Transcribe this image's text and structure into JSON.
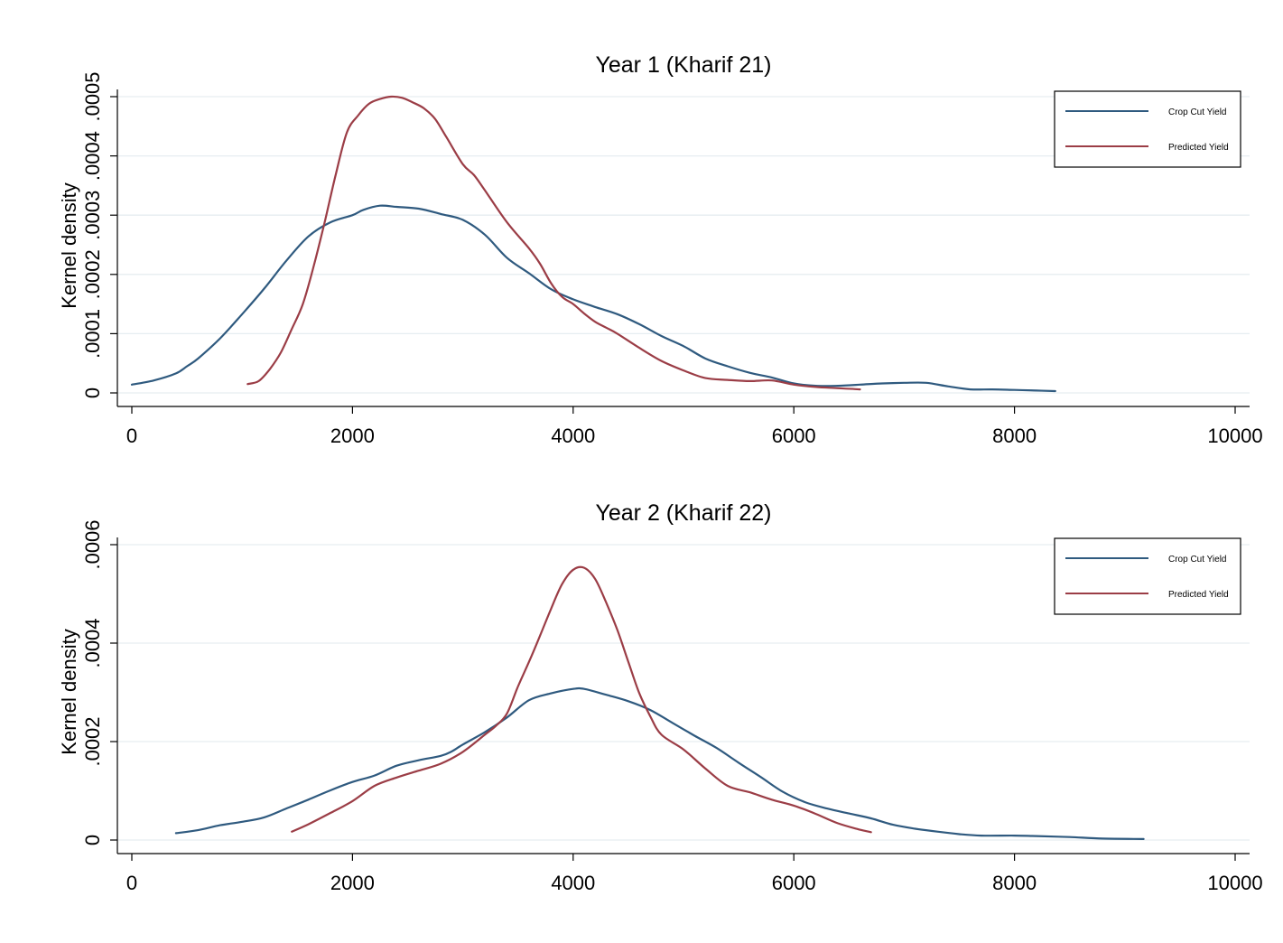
{
  "chart_data": [
    {
      "type": "line",
      "title": "Year 1 (Kharif 21)",
      "xlabel": "",
      "ylabel": "Kernel density",
      "xlim": [
        0,
        10000
      ],
      "ylim": [
        0,
        0.0005
      ],
      "xticks": [
        0,
        2000,
        4000,
        6000,
        8000,
        10000
      ],
      "xtick_labels": [
        "0",
        "2000",
        "4000",
        "6000",
        "8000",
        "10000"
      ],
      "yticks": [
        0,
        0.0001,
        0.0002,
        0.0003,
        0.0004,
        0.0005
      ],
      "ytick_labels": [
        "0",
        ".0001",
        ".0002",
        ".0003",
        ".0004",
        ".0005"
      ],
      "grid": true,
      "legend_position": "top-right",
      "series": [
        {
          "name": "Crop Cut Yield",
          "color": "#2f5a7f",
          "points": [
            [
              0,
              1.4e-05
            ],
            [
              200,
              2.1e-05
            ],
            [
              400,
              3.3e-05
            ],
            [
              500,
              4.5e-05
            ],
            [
              600,
              5.8e-05
            ],
            [
              800,
              9.2e-05
            ],
            [
              1000,
              0.000133
            ],
            [
              1200,
              0.000176
            ],
            [
              1400,
              0.000223
            ],
            [
              1600,
              0.000264
            ],
            [
              1800,
              0.000288
            ],
            [
              2000,
              0.0003
            ],
            [
              2100,
              0.000309
            ],
            [
              2250,
              0.000316
            ],
            [
              2400,
              0.000314
            ],
            [
              2600,
              0.000311
            ],
            [
              2800,
              0.000302
            ],
            [
              3000,
              0.000292
            ],
            [
              3200,
              0.000267
            ],
            [
              3400,
              0.000228
            ],
            [
              3600,
              0.000202
            ],
            [
              3800,
              0.000175
            ],
            [
              4000,
              0.000158
            ],
            [
              4200,
              0.000145
            ],
            [
              4400,
              0.000133
            ],
            [
              4600,
              0.000116
            ],
            [
              4800,
              9.6e-05
            ],
            [
              5000,
              7.9e-05
            ],
            [
              5200,
              5.8e-05
            ],
            [
              5400,
              4.5e-05
            ],
            [
              5600,
              3.4e-05
            ],
            [
              5800,
              2.6e-05
            ],
            [
              6000,
              1.6e-05
            ],
            [
              6200,
              1.2e-05
            ],
            [
              6400,
              1.2e-05
            ],
            [
              6600,
              1.4e-05
            ],
            [
              6800,
              1.6e-05
            ],
            [
              7000,
              1.7e-05
            ],
            [
              7200,
              1.7e-05
            ],
            [
              7400,
              1.1e-05
            ],
            [
              7600,
              6e-06
            ],
            [
              7800,
              6e-06
            ],
            [
              8000,
              5e-06
            ],
            [
              8200,
              4e-06
            ],
            [
              8370,
              3e-06
            ]
          ]
        },
        {
          "name": "Predicted Yield",
          "color": "#9b3d46",
          "points": [
            [
              1050,
              1.5e-05
            ],
            [
              1150,
              2e-05
            ],
            [
              1250,
              4e-05
            ],
            [
              1350,
              6.8e-05
            ],
            [
              1450,
              0.000108
            ],
            [
              1550,
              0.00015
            ],
            [
              1650,
              0.000215
            ],
            [
              1750,
              0.00029
            ],
            [
              1850,
              0.00037
            ],
            [
              1950,
              0.00044
            ],
            [
              2050,
              0.000468
            ],
            [
              2150,
              0.000488
            ],
            [
              2250,
              0.000496
            ],
            [
              2350,
              0.0005
            ],
            [
              2450,
              0.000498
            ],
            [
              2550,
              0.00049
            ],
            [
              2650,
              0.00048
            ],
            [
              2750,
              0.000462
            ],
            [
              2850,
              0.000432
            ],
            [
              3000,
              0.000386
            ],
            [
              3100,
              0.000368
            ],
            [
              3200,
              0.000342
            ],
            [
              3400,
              0.000288
            ],
            [
              3600,
              0.000244
            ],
            [
              3700,
              0.000218
            ],
            [
              3800,
              0.000185
            ],
            [
              3900,
              0.000162
            ],
            [
              4000,
              0.00015
            ],
            [
              4100,
              0.000134
            ],
            [
              4200,
              0.00012
            ],
            [
              4300,
              0.00011
            ],
            [
              4400,
              0.0001
            ],
            [
              4600,
              7.6e-05
            ],
            [
              4800,
              5.4e-05
            ],
            [
              5000,
              3.8e-05
            ],
            [
              5200,
              2.5e-05
            ],
            [
              5400,
              2.2e-05
            ],
            [
              5600,
              2e-05
            ],
            [
              5800,
              2.1e-05
            ],
            [
              6000,
              1.4e-05
            ],
            [
              6200,
              1e-05
            ],
            [
              6400,
              8e-06
            ],
            [
              6600,
              6e-06
            ]
          ]
        }
      ]
    },
    {
      "type": "line",
      "title": "Year 2 (Kharif 22)",
      "xlabel": "",
      "ylabel": "Kernel density",
      "xlim": [
        0,
        10000
      ],
      "ylim": [
        0,
        0.0006
      ],
      "xticks": [
        0,
        2000,
        4000,
        6000,
        8000,
        10000
      ],
      "xtick_labels": [
        "0",
        "2000",
        "4000",
        "6000",
        "8000",
        "10000"
      ],
      "yticks": [
        0,
        0.0002,
        0.0004,
        0.0006
      ],
      "ytick_labels": [
        "0",
        ".0002",
        ".0004",
        ".0006"
      ],
      "grid": true,
      "legend_position": "top-right",
      "series": [
        {
          "name": "Crop Cut Yield",
          "color": "#2f5a7f",
          "points": [
            [
              400,
              1.4e-05
            ],
            [
              600,
              2e-05
            ],
            [
              800,
              3e-05
            ],
            [
              1000,
              3.7e-05
            ],
            [
              1200,
              4.6e-05
            ],
            [
              1400,
              6.4e-05
            ],
            [
              1600,
              8.2e-05
            ],
            [
              1800,
              0.000101
            ],
            [
              2000,
              0.000118
            ],
            [
              2200,
              0.000131
            ],
            [
              2400,
              0.000151
            ],
            [
              2600,
              0.000162
            ],
            [
              2800,
              0.000171
            ],
            [
              2900,
              0.00018
            ],
            [
              3000,
              0.000194
            ],
            [
              3200,
              0.000219
            ],
            [
              3400,
              0.000249
            ],
            [
              3600,
              0.000284
            ],
            [
              3800,
              0.000298
            ],
            [
              4000,
              0.000307
            ],
            [
              4100,
              0.000307
            ],
            [
              4300,
              0.000295
            ],
            [
              4500,
              0.000282
            ],
            [
              4700,
              0.000264
            ],
            [
              4900,
              0.000238
            ],
            [
              5100,
              0.000212
            ],
            [
              5300,
              0.000187
            ],
            [
              5500,
              0.000157
            ],
            [
              5700,
              0.000128
            ],
            [
              5900,
              9.8e-05
            ],
            [
              6100,
              7.7e-05
            ],
            [
              6300,
              6.4e-05
            ],
            [
              6500,
              5.4e-05
            ],
            [
              6700,
              4.4e-05
            ],
            [
              6900,
              3.1e-05
            ],
            [
              7100,
              2.3e-05
            ],
            [
              7300,
              1.7e-05
            ],
            [
              7500,
              1.2e-05
            ],
            [
              7700,
              9e-06
            ],
            [
              8000,
              9e-06
            ],
            [
              8200,
              8e-06
            ],
            [
              8500,
              6e-06
            ],
            [
              8800,
              3e-06
            ],
            [
              9170,
              2e-06
            ]
          ]
        },
        {
          "name": "Predicted Yield",
          "color": "#9b3d46",
          "points": [
            [
              1450,
              1.7e-05
            ],
            [
              1600,
              3.2e-05
            ],
            [
              1800,
              5.5e-05
            ],
            [
              2000,
              7.9e-05
            ],
            [
              2200,
              0.00011
            ],
            [
              2400,
              0.000127
            ],
            [
              2600,
              0.000141
            ],
            [
              2800,
              0.000155
            ],
            [
              3000,
              0.000179
            ],
            [
              3200,
              0.000214
            ],
            [
              3300,
              0.000232
            ],
            [
              3400,
              0.000257
            ],
            [
              3500,
              0.000312
            ],
            [
              3600,
              0.000362
            ],
            [
              3700,
              0.000415
            ],
            [
              3800,
              0.00047
            ],
            [
              3900,
              0.00052
            ],
            [
              4000,
              0.000549
            ],
            [
              4100,
              0.000553
            ],
            [
              4200,
              0.00053
            ],
            [
              4300,
              0.000482
            ],
            [
              4400,
              0.000427
            ],
            [
              4500,
              0.000362
            ],
            [
              4600,
              0.000298
            ],
            [
              4700,
              0.000251
            ],
            [
              4800,
              0.000214
            ],
            [
              5000,
              0.000184
            ],
            [
              5200,
              0.000145
            ],
            [
              5400,
              0.00011
            ],
            [
              5600,
              9.7e-05
            ],
            [
              5800,
              8.2e-05
            ],
            [
              6000,
              7e-05
            ],
            [
              6200,
              5.3e-05
            ],
            [
              6400,
              3.4e-05
            ],
            [
              6600,
              2.1e-05
            ],
            [
              6700,
              1.6e-05
            ]
          ]
        }
      ]
    }
  ]
}
